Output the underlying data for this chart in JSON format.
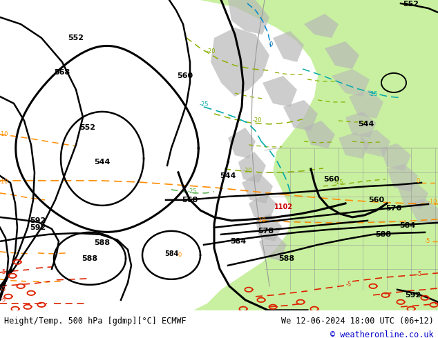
{
  "title_left": "Height/Temp. 500 hPa [gdmp][°C] ECMWF",
  "title_right": "We 12-06-2024 18:00 UTC (06+12)",
  "copyright": "© weatheronline.co.uk",
  "bg_ocean": "#d4d4d4",
  "green_area": "#c8f0a0",
  "gray_land": "#b8b8b8",
  "bottom_bar_color": "#ffffff",
  "copyright_color": "#0000cc"
}
